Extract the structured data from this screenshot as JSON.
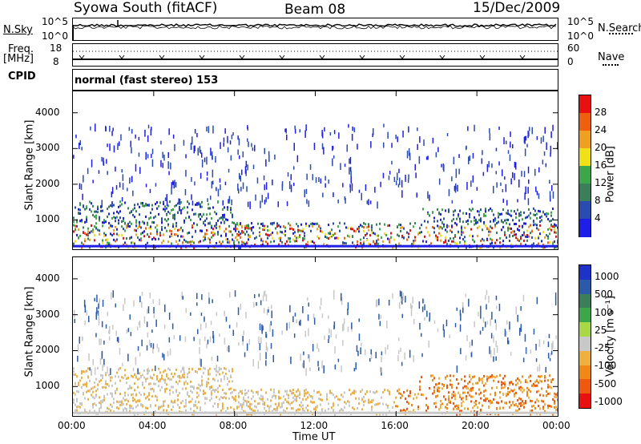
{
  "header": {
    "station": "Syowa South (fitACF)",
    "beam": "Beam 08",
    "date": "15/Dec/2009"
  },
  "top_panels": {
    "nsky_label": "N.Sky",
    "nsky_ticks": [
      "10^5",
      "10^0"
    ],
    "nsearch_label": "N.Search",
    "nsearch_ticks": [
      "10^5",
      "10^0"
    ],
    "freq_label": "Freq.",
    "freq_unit": "[MHz]",
    "freq_ticks": [
      "18",
      "8"
    ],
    "nave_label": "Nave",
    "nave_ticks": [
      "60",
      "0"
    ],
    "cpid_label": "CPID",
    "cpid_text": "normal (fast stereo) 153"
  },
  "colors": {
    "power": [
      "#1e1ee6",
      "#2a4bb0",
      "#3a7e5a",
      "#3ea64a",
      "#f0e01a",
      "#f0a020",
      "#ee6010",
      "#e81010"
    ],
    "velocity": [
      "#e81010",
      "#ee5810",
      "#f08818",
      "#f0b040",
      "#c8c8c8",
      "#a8d848",
      "#3ea64a",
      "#3a7e5a",
      "#2a5aa8",
      "#1e32c8"
    ]
  },
  "chart_data": [
    {
      "type": "heatmap",
      "name": "power",
      "xlabel": "Time UT",
      "ylabel": "Slant Range [km]",
      "x_ticks": [
        "00:00",
        "04:00",
        "08:00",
        "12:00",
        "16:00",
        "20:00",
        "00:00"
      ],
      "y_ticks": [
        1000,
        2000,
        3000,
        4000
      ],
      "ylim": [
        180,
        4600
      ],
      "colorbar_label": "Power [dB]",
      "colorbar_ticks": [
        4,
        8,
        12,
        16,
        20,
        24,
        28
      ],
      "colorbar_range": [
        0,
        32
      ]
    },
    {
      "type": "heatmap",
      "name": "velocity",
      "xlabel": "Time UT",
      "ylabel": "Slant Range [km]",
      "x_ticks": [
        "00:00",
        "04:00",
        "08:00",
        "12:00",
        "16:00",
        "20:00",
        "00:00"
      ],
      "y_ticks": [
        1000,
        2000,
        3000,
        4000
      ],
      "ylim": [
        180,
        4600
      ],
      "colorbar_label": "Velocity [m s⁻¹]",
      "colorbar_ticks": [
        1000,
        500,
        100,
        25,
        -25,
        -100,
        -500,
        -1000
      ]
    }
  ],
  "axes": {
    "xlabel": "Time UT",
    "x_ticks": [
      "00:00",
      "04:00",
      "08:00",
      "12:00",
      "16:00",
      "20:00",
      "00:00"
    ]
  }
}
